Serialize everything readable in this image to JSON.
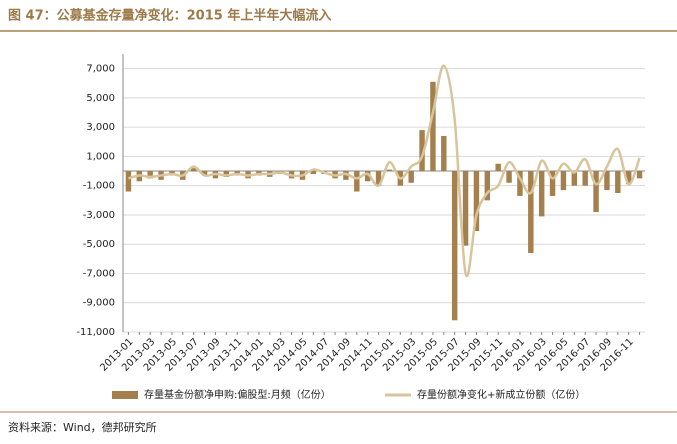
{
  "title": "图 47：公募基金存量净变化：2015 年上半年大幅流入",
  "source": "资料来源：Wind，德邦研究所",
  "chart_data": {
    "type": "bar-line",
    "categories": [
      "2013-01",
      null,
      "2013-03",
      null,
      "2013-05",
      null,
      "2013-07",
      null,
      "2013-09",
      null,
      "2013-11",
      null,
      "2014-01",
      null,
      "2014-03",
      null,
      "2014-05",
      null,
      "2014-07",
      null,
      "2014-09",
      null,
      "2014-11",
      null,
      "2015-01",
      null,
      "2015-03",
      null,
      "2015-05",
      null,
      "2015-07",
      null,
      "2015-09",
      null,
      "2015-11",
      null,
      "2016-01",
      null,
      "2016-03",
      null,
      "2016-05",
      null,
      "2016-07",
      null,
      "2016-09",
      null,
      "2016-11",
      null
    ],
    "series": [
      {
        "name": "存量基金份额净申购:偏股型:月频（亿份）",
        "type": "bar",
        "color": "#a5804f",
        "values": [
          -1400,
          -700,
          -500,
          -600,
          -300,
          -600,
          200,
          -300,
          -500,
          -400,
          -300,
          -500,
          -300,
          -400,
          -200,
          -500,
          -600,
          -200,
          -200,
          -500,
          -600,
          -1400,
          -700,
          -1000,
          100,
          -1000,
          -800,
          2800,
          6100,
          2400,
          -10200,
          -5100,
          -4100,
          -2000,
          500,
          -800,
          -1700,
          -5600,
          -3100,
          -1700,
          -1300,
          -1000,
          -1000,
          -2800,
          -1300,
          -1500,
          -900,
          -500
        ]
      },
      {
        "name": "存量份额净变化+新成立份额（亿份）",
        "type": "line",
        "color": "#d8c59d",
        "values": [
          -500,
          -300,
          -400,
          -300,
          -200,
          -300,
          300,
          -300,
          -200,
          -300,
          -200,
          -300,
          -200,
          -200,
          -100,
          -300,
          -300,
          100,
          -100,
          -300,
          -200,
          -500,
          -200,
          -1000,
          600,
          -500,
          300,
          1000,
          4000,
          7200,
          3500,
          -7000,
          -3000,
          -1500,
          -1000,
          600,
          -500,
          -1500,
          700,
          -500,
          500,
          -100,
          800,
          -900,
          300,
          1500,
          -900,
          900
        ]
      }
    ],
    "ylim": [
      -11000,
      8000
    ],
    "yticks": [
      {
        "value": -11000,
        "label": "-11,000"
      },
      {
        "value": -9000,
        "label": "-9,000"
      },
      {
        "value": -7000,
        "label": "-7,000"
      },
      {
        "value": -5000,
        "label": "-5,000"
      },
      {
        "value": -3000,
        "label": "-3,000"
      },
      {
        "value": -1000,
        "label": "-1,000"
      },
      {
        "value": 1000,
        "label": "1,000"
      },
      {
        "value": 3000,
        "label": "3,000"
      },
      {
        "value": 5000,
        "label": "5,000"
      },
      {
        "value": 7000,
        "label": "7,000"
      }
    ],
    "grid": true
  }
}
